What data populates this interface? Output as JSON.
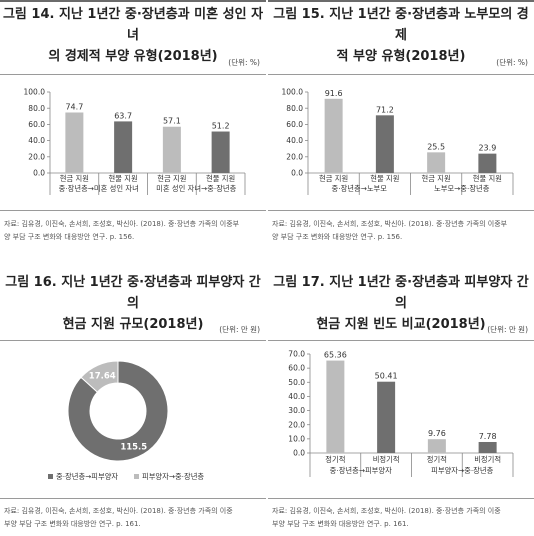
{
  "colors": {
    "dark": "#6f6f6f",
    "light": "#bcbcbc",
    "rule": "#6b6b6b"
  },
  "panels": [
    {
      "title_lines": [
        "그림 14. 지난 1년간 중·장년층과 미혼 성인 자녀",
        "의 경제적 부양 유형(2018년)"
      ],
      "unit": "(단위: %)",
      "source_lines": [
        "자료: 김유경, 이진숙, 손서희, 조성호, 박신아. (2018). 중·장년층 가족의 이중부",
        "양 부담 구조 변화와 대응방안 연구. p. 156."
      ]
    },
    {
      "title_lines": [
        "그림 15. 지난 1년간 중·장년층과 노부모의 경제",
        "적 부양 유형(2018년)"
      ],
      "unit": "(단위: %)",
      "source_lines": [
        "자료: 김유경, 이진숙, 손서희, 조성호, 박신아. (2018). 중·장년층 가족의 이중부",
        "양 부담 구조 변화와 대응방안 연구. p. 156."
      ]
    },
    {
      "title_lines": [
        "그림 16. 지난 1년간 중·장년층과 피부양자 간의",
        "현금 지원 규모(2018년)"
      ],
      "unit": "(단위: 만 원)",
      "source_lines": [
        "자료: 김유경, 이진숙, 손서희, 조성호, 박신아. (2018). 중·장년층 가족의 이중",
        "부양 부담 구조 변화와 대응방안 연구. p. 161."
      ]
    },
    {
      "title_lines": [
        "그림 17. 지난 1년간 중·장년층과 피부양자 간의",
        "현금 지원 빈도 비교(2018년)"
      ],
      "unit": "(단위: 만 원)",
      "source_lines": [
        "자료: 김유경, 이진숙, 손서희, 조성호, 박신아. (2018). 중·장년층 가족의 이중",
        "부양 부담 구조 변화와 대응방안 연구. p. 161."
      ]
    }
  ],
  "chart_data": [
    {
      "type": "bar",
      "categories": [
        "현금 지원",
        "현물 지원",
        "현금 지원",
        "현물 지원"
      ],
      "groups": [
        "중·장년층→미혼 성인 자녀",
        "미혼 성인 자녀→중·장년층"
      ],
      "values": [
        74.7,
        63.7,
        57.1,
        51.2
      ],
      "value_labels": [
        "74.7",
        "63.7",
        "57.1",
        "51.2"
      ],
      "color_keys": [
        "light",
        "dark",
        "light",
        "dark"
      ],
      "ylim": [
        0,
        100
      ],
      "yticks": [
        "0.0",
        "20.0",
        "40.0",
        "60.0",
        "80.0",
        "100.0"
      ],
      "xlabel": "",
      "ylabel": "",
      "grid": false
    },
    {
      "type": "bar",
      "categories": [
        "현금 지원",
        "현물 지원",
        "현금 지원",
        "현물 지원"
      ],
      "groups": [
        "중·장년층→노부모",
        "노부모→중·장년층"
      ],
      "values": [
        91.6,
        71.2,
        25.5,
        23.9
      ],
      "value_labels": [
        "91.6",
        "71.2",
        "25.5",
        "23.9"
      ],
      "color_keys": [
        "light",
        "dark",
        "light",
        "dark"
      ],
      "ylim": [
        0,
        100
      ],
      "yticks": [
        "0.0",
        "20.0",
        "40.0",
        "60.0",
        "80.0",
        "100.0"
      ],
      "xlabel": "",
      "ylabel": "",
      "grid": false
    },
    {
      "type": "pie",
      "style": "donut",
      "slices": [
        {
          "label": "중·장년층→피부양자",
          "value": 115.5,
          "value_label": "115.5",
          "color_key": "dark"
        },
        {
          "label": "피부양자→중·장년층",
          "value": 17.64,
          "value_label": "17.64",
          "color_key": "light"
        }
      ],
      "legend": "bottom"
    },
    {
      "type": "bar",
      "categories": [
        "정기적",
        "비정기적",
        "정기적",
        "비정기적"
      ],
      "groups": [
        "중·장년층→피부양자",
        "피부양자→중·장년층"
      ],
      "values": [
        65.36,
        50.41,
        9.76,
        7.78
      ],
      "value_labels": [
        "65.36",
        "50.41",
        "9.76",
        "7.78"
      ],
      "color_keys": [
        "light",
        "dark",
        "light",
        "dark"
      ],
      "ylim": [
        0,
        70
      ],
      "yticks": [
        "0.0",
        "10.0",
        "20.0",
        "30.0",
        "40.0",
        "50.0",
        "60.0",
        "70.0"
      ],
      "xlabel": "",
      "ylabel": "",
      "grid": false
    }
  ]
}
